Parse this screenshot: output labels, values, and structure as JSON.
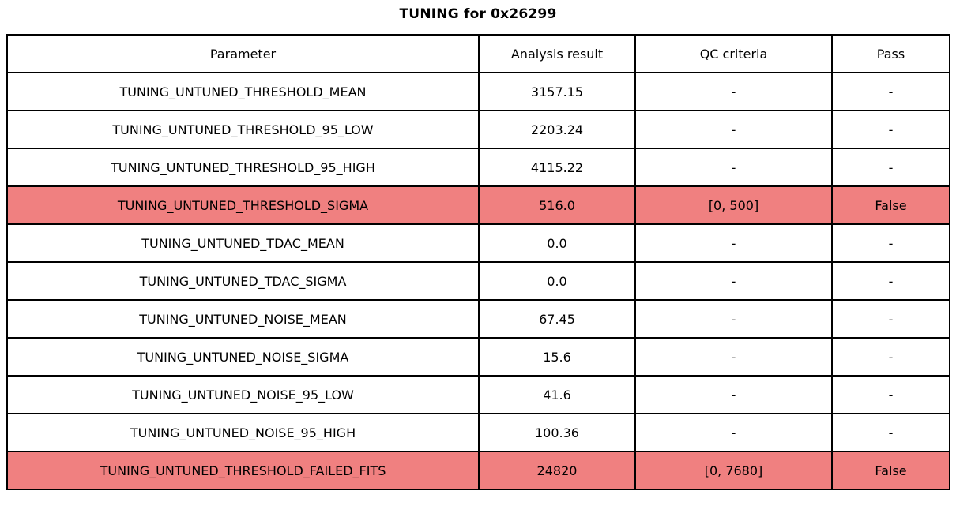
{
  "title": "TUNING for 0x26299",
  "colors": {
    "normal_row_bg": "#ffffff",
    "fail_row_bg": "#f08080",
    "border": "#000000",
    "text": "#000000"
  },
  "table": {
    "headers": [
      "Parameter",
      "Analysis result",
      "QC criteria",
      "Pass"
    ],
    "rows": [
      {
        "parameter": "TUNING_UNTUNED_THRESHOLD_MEAN",
        "result": "3157.15",
        "qc": "-",
        "pass": "-",
        "failed": false
      },
      {
        "parameter": "TUNING_UNTUNED_THRESHOLD_95_LOW",
        "result": "2203.24",
        "qc": "-",
        "pass": "-",
        "failed": false
      },
      {
        "parameter": "TUNING_UNTUNED_THRESHOLD_95_HIGH",
        "result": "4115.22",
        "qc": "-",
        "pass": "-",
        "failed": false
      },
      {
        "parameter": "TUNING_UNTUNED_THRESHOLD_SIGMA",
        "result": "516.0",
        "qc": "[0, 500]",
        "pass": "False",
        "failed": true
      },
      {
        "parameter": "TUNING_UNTUNED_TDAC_MEAN",
        "result": "0.0",
        "qc": "-",
        "pass": "-",
        "failed": false
      },
      {
        "parameter": "TUNING_UNTUNED_TDAC_SIGMA",
        "result": "0.0",
        "qc": "-",
        "pass": "-",
        "failed": false
      },
      {
        "parameter": "TUNING_UNTUNED_NOISE_MEAN",
        "result": "67.45",
        "qc": "-",
        "pass": "-",
        "failed": false
      },
      {
        "parameter": "TUNING_UNTUNED_NOISE_SIGMA",
        "result": "15.6",
        "qc": "-",
        "pass": "-",
        "failed": false
      },
      {
        "parameter": "TUNING_UNTUNED_NOISE_95_LOW",
        "result": "41.6",
        "qc": "-",
        "pass": "-",
        "failed": false
      },
      {
        "parameter": "TUNING_UNTUNED_NOISE_95_HIGH",
        "result": "100.36",
        "qc": "-",
        "pass": "-",
        "failed": false
      },
      {
        "parameter": "TUNING_UNTUNED_THRESHOLD_FAILED_FITS",
        "result": "24820",
        "qc": "[0, 7680]",
        "pass": "False",
        "failed": true
      }
    ]
  },
  "chart_data": {
    "type": "table",
    "title": "TUNING for 0x26299",
    "columns": [
      "Parameter",
      "Analysis result",
      "QC criteria",
      "Pass"
    ],
    "rows": [
      [
        "TUNING_UNTUNED_THRESHOLD_MEAN",
        "3157.15",
        "-",
        "-"
      ],
      [
        "TUNING_UNTUNED_THRESHOLD_95_LOW",
        "2203.24",
        "-",
        "-"
      ],
      [
        "TUNING_UNTUNED_THRESHOLD_95_HIGH",
        "4115.22",
        "-",
        "-"
      ],
      [
        "TUNING_UNTUNED_THRESHOLD_SIGMA",
        "516.0",
        "[0, 500]",
        "False"
      ],
      [
        "TUNING_UNTUNED_TDAC_MEAN",
        "0.0",
        "-",
        "-"
      ],
      [
        "TUNING_UNTUNED_TDAC_SIGMA",
        "0.0",
        "-",
        "-"
      ],
      [
        "TUNING_UNTUNED_NOISE_MEAN",
        "67.45",
        "-",
        "-"
      ],
      [
        "TUNING_UNTUNED_NOISE_SIGMA",
        "15.6",
        "-",
        "-"
      ],
      [
        "TUNING_UNTUNED_NOISE_95_LOW",
        "41.6",
        "-",
        "-"
      ],
      [
        "TUNING_UNTUNED_NOISE_95_HIGH",
        "100.36",
        "-",
        "-"
      ],
      [
        "TUNING_UNTUNED_THRESHOLD_FAILED_FITS",
        "24820",
        "[0, 7680]",
        "False"
      ]
    ],
    "highlighted_failed_rows": [
      3,
      10
    ],
    "layout": "full-width bordered grid, all cells centered, failed rows filled light coral"
  }
}
